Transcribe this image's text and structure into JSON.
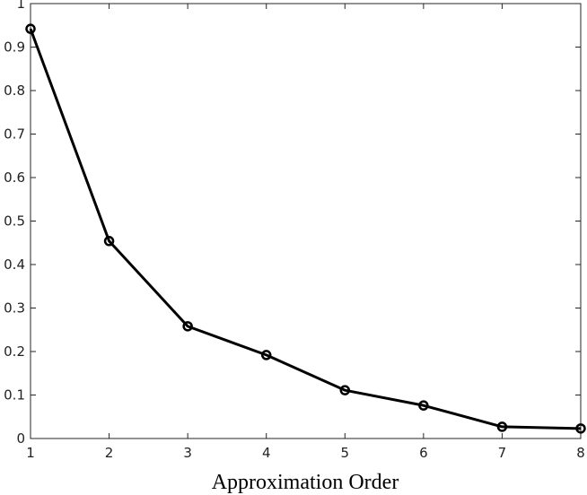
{
  "chart_data": {
    "type": "line",
    "xlabel": "Approximation Order",
    "x": [
      1,
      2,
      3,
      4,
      5,
      6,
      7,
      8
    ],
    "series": [
      {
        "color": "#000000",
        "values": [
          0.942,
          0.454,
          0.258,
          0.192,
          0.111,
          0.076,
          0.027,
          0.023
        ]
      }
    ],
    "xlim": [
      1,
      8
    ],
    "xticks": [
      1,
      2,
      3,
      4,
      5,
      6,
      7,
      8
    ],
    "ylim": [
      0,
      1
    ],
    "yticks": [
      0,
      0.1,
      0.2,
      0.3,
      0.4,
      0.5,
      0.6,
      0.7,
      0.8,
      0.9,
      1
    ],
    "grid": false
  }
}
